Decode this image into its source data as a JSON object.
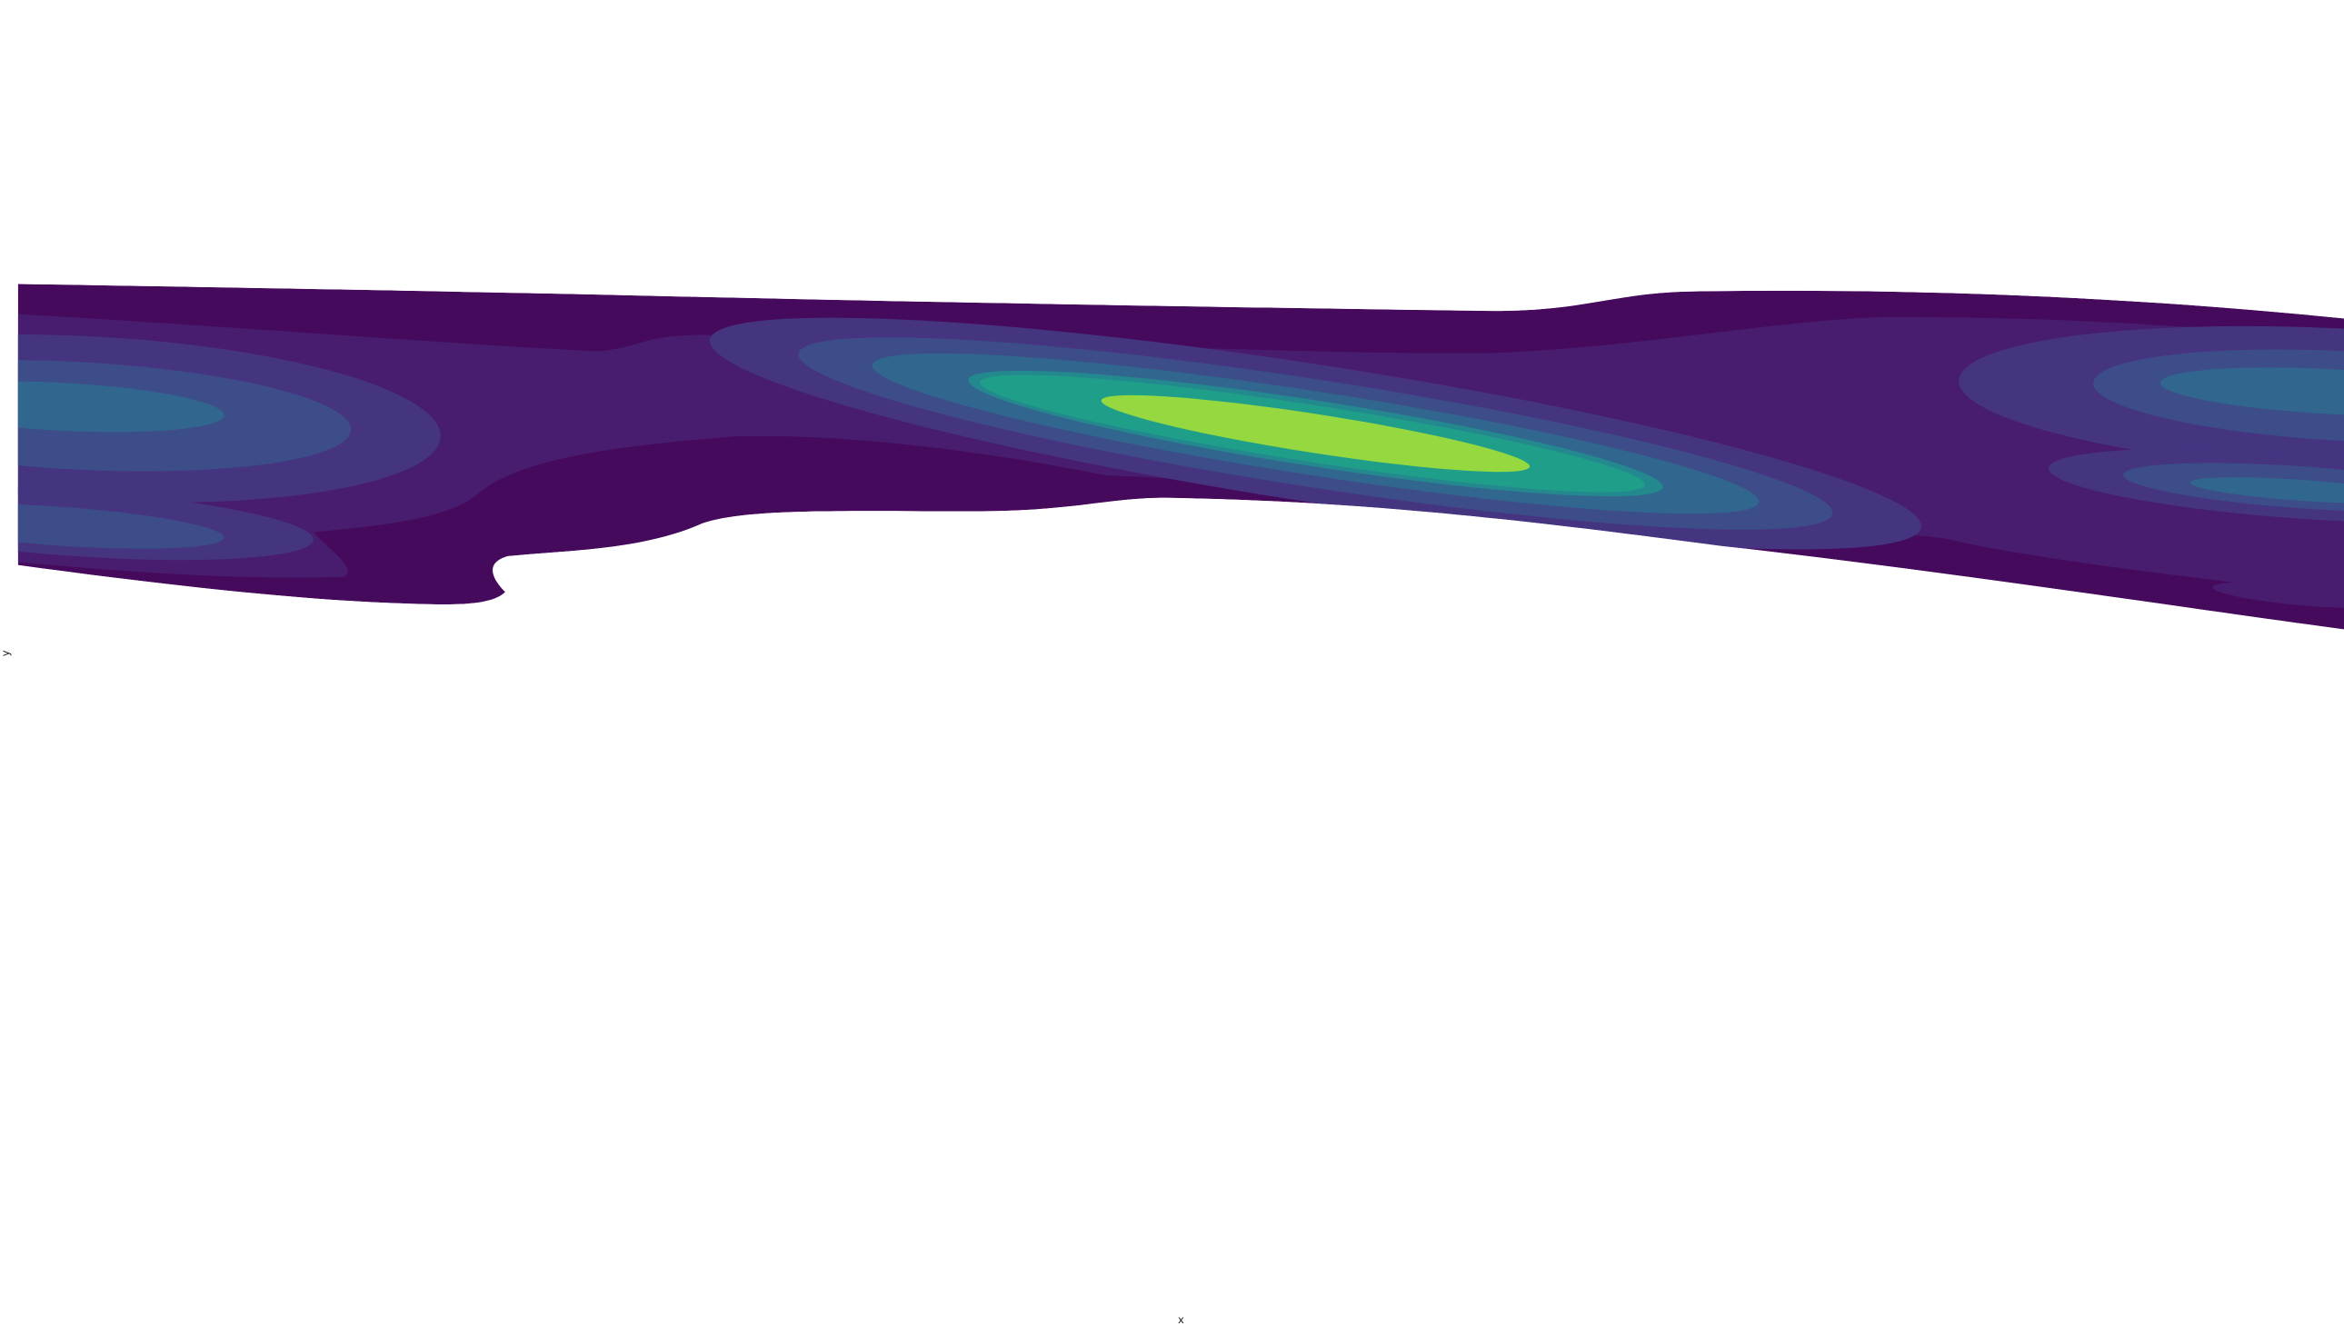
{
  "chart_data": {
    "type": "contour",
    "x_label": "x",
    "y_label": "y",
    "colors": [
      "#450a5c",
      "#481c6e",
      "#453581",
      "#3d4d8a",
      "#31678e",
      "#23898e",
      "#1f9e89",
      "#95d840"
    ]
  }
}
